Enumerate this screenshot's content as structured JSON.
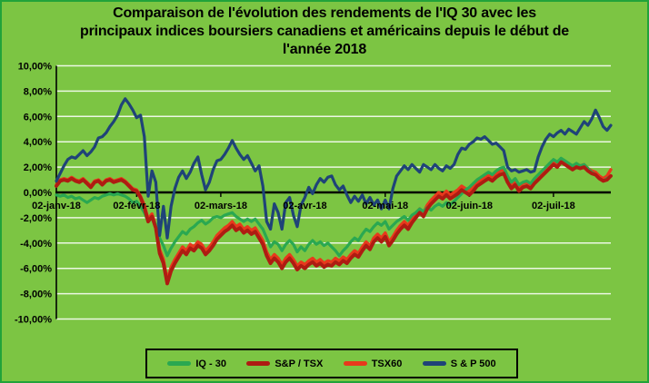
{
  "title_display": "Comparaison de l'évolution des rendements de l'IQ 30 avec les\nprincipaux indices boursiers canadiens et américains depuis le début de\nl'année 2018",
  "colors": {
    "figure_background": "#7cc543",
    "figure_border": "#21a33a",
    "gridline": "rgba(255,255,255,0.85)",
    "axis": "#000000",
    "text": "#000000"
  },
  "chart_data": {
    "type": "line",
    "title": "Comparaison de l'évolution des rendements de l'IQ 30 avec les principaux indices boursiers canadiens et américains depuis le début de l'année 2018",
    "x_axis": {
      "unit": "trading-day (daily series, Jan 2 2018 – late Jul 2018)",
      "n_points": 146,
      "tick_positions": [
        0,
        21,
        43,
        65,
        86,
        108,
        130
      ],
      "tick_labels": [
        "02-janv-18",
        "02-févr-18",
        "02-mars-18",
        "02-avr-18",
        "02-mai-18",
        "02-juin-18",
        "02-juil-18"
      ]
    },
    "y_axis": {
      "unit": "percent",
      "min": -10,
      "max": 10,
      "tick_step": 2,
      "tick_values": [
        10,
        8,
        6,
        4,
        2,
        0,
        -2,
        -4,
        -6,
        -8,
        -10
      ],
      "tick_labels": [
        "10,00%",
        "8,00%",
        "6,00%",
        "4,00%",
        "2,00%",
        "0,00%",
        "-2,00%",
        "-4,00%",
        "-6,00%",
        "-8,00%",
        "-10,00%"
      ]
    },
    "grid": true,
    "legend": {
      "position": "bottom"
    },
    "draw_order": [
      2,
      0,
      1,
      3
    ],
    "series": [
      {
        "name": "IQ - 30",
        "color": "#2aa851",
        "values": [
          -0.2,
          -0.3,
          -0.2,
          -0.4,
          -0.3,
          -0.5,
          -0.4,
          -0.6,
          -0.8,
          -0.6,
          -0.4,
          -0.5,
          -0.3,
          -0.2,
          -0.1,
          -0.2,
          -0.1,
          -0.2,
          -0.3,
          -0.5,
          -0.8,
          -0.7,
          -1.1,
          -1.6,
          -2.3,
          -2.0,
          -2.5,
          -3.6,
          -4.2,
          -5.0,
          -4.4,
          -3.9,
          -3.5,
          -3.1,
          -3.3,
          -2.9,
          -2.7,
          -2.4,
          -2.2,
          -2.5,
          -2.3,
          -2.0,
          -1.9,
          -2.0,
          -1.8,
          -1.7,
          -1.6,
          -1.9,
          -2.1,
          -2.3,
          -2.1,
          -2.3,
          -2.1,
          -2.5,
          -2.9,
          -3.6,
          -4.3,
          -3.9,
          -4.1,
          -4.6,
          -4.1,
          -3.8,
          -4.1,
          -4.7,
          -4.3,
          -4.6,
          -4.1,
          -3.8,
          -4.1,
          -3.9,
          -4.2,
          -4.0,
          -4.3,
          -4.6,
          -5.0,
          -4.6,
          -4.3,
          -3.9,
          -3.6,
          -3.8,
          -3.3,
          -2.9,
          -3.1,
          -2.7,
          -2.4,
          -2.6,
          -2.3,
          -2.9,
          -2.6,
          -2.3,
          -2.1,
          -1.9,
          -2.2,
          -1.8,
          -1.6,
          -1.3,
          -1.5,
          -1.2,
          -1.4,
          -1.1,
          -0.9,
          -1.1,
          -0.8,
          -1.0,
          -0.7,
          -0.4,
          -0.1,
          0.2,
          0.4,
          0.7,
          1.0,
          1.2,
          1.4,
          1.6,
          1.4,
          1.7,
          1.9,
          2.0,
          1.3,
          0.8,
          1.1,
          0.6,
          0.8,
          0.9,
          0.7,
          1.1,
          1.4,
          1.7,
          2.0,
          2.3,
          2.6,
          2.4,
          2.7,
          2.5,
          2.3,
          2.1,
          2.3,
          2.1,
          2.2,
          1.9,
          1.6,
          1.4,
          1.1,
          0.9,
          1.1,
          1.3
        ]
      },
      {
        "name": "S&P / TSX",
        "color": "#ae1c12",
        "values": [
          0.5,
          0.9,
          1.0,
          0.9,
          1.1,
          0.9,
          0.8,
          1.0,
          0.7,
          0.4,
          0.8,
          0.9,
          0.6,
          0.9,
          1.0,
          0.8,
          0.9,
          1.0,
          0.8,
          0.5,
          0.2,
          0.1,
          -0.4,
          -1.2,
          -2.3,
          -1.9,
          -2.8,
          -4.8,
          -5.6,
          -7.2,
          -6.2,
          -5.6,
          -5.1,
          -4.6,
          -4.9,
          -4.4,
          -4.6,
          -4.2,
          -4.4,
          -4.9,
          -4.6,
          -4.2,
          -3.7,
          -3.4,
          -3.1,
          -2.9,
          -2.6,
          -3.0,
          -2.8,
          -3.2,
          -3.0,
          -3.3,
          -3.1,
          -3.6,
          -4.1,
          -5.0,
          -5.6,
          -5.2,
          -5.5,
          -6.0,
          -5.5,
          -5.2,
          -5.6,
          -6.1,
          -5.8,
          -6.0,
          -5.7,
          -5.5,
          -5.8,
          -5.6,
          -5.9,
          -5.7,
          -5.8,
          -5.5,
          -5.7,
          -5.4,
          -5.6,
          -5.2,
          -4.9,
          -5.1,
          -4.6,
          -4.2,
          -4.5,
          -3.9,
          -3.6,
          -3.9,
          -3.5,
          -4.2,
          -3.8,
          -3.3,
          -2.9,
          -2.6,
          -2.9,
          -2.4,
          -2.0,
          -1.6,
          -1.9,
          -1.3,
          -0.9,
          -0.6,
          -0.3,
          -0.5,
          -0.2,
          -0.5,
          -0.3,
          -0.1,
          0.2,
          0.0,
          -0.2,
          0.1,
          0.5,
          0.7,
          0.9,
          1.1,
          0.9,
          1.2,
          1.4,
          1.5,
          0.8,
          0.3,
          0.6,
          0.1,
          0.4,
          0.5,
          0.3,
          0.7,
          1.0,
          1.3,
          1.6,
          1.9,
          2.2,
          2.0,
          2.4,
          2.2,
          2.0,
          1.8,
          2.0,
          1.9,
          2.0,
          1.7,
          1.5,
          1.4,
          1.1,
          0.9,
          1.0,
          1.3
        ]
      },
      {
        "name": "TSX60",
        "color": "#e8391c",
        "values": [
          0.6,
          1.0,
          1.1,
          1.0,
          1.2,
          1.0,
          0.9,
          1.1,
          0.8,
          0.5,
          0.9,
          1.0,
          0.7,
          1.0,
          1.1,
          0.9,
          1.0,
          1.1,
          0.9,
          0.6,
          0.3,
          0.2,
          -0.3,
          -1.0,
          -2.1,
          -1.7,
          -2.6,
          -4.5,
          -5.3,
          -6.9,
          -5.9,
          -5.3,
          -4.8,
          -4.3,
          -4.6,
          -4.1,
          -4.3,
          -3.9,
          -4.1,
          -4.6,
          -4.3,
          -3.9,
          -3.4,
          -3.1,
          -2.8,
          -2.6,
          -2.3,
          -2.7,
          -2.5,
          -2.9,
          -2.7,
          -3.0,
          -2.8,
          -3.3,
          -3.8,
          -4.7,
          -5.3,
          -4.9,
          -5.2,
          -5.7,
          -5.2,
          -4.9,
          -5.3,
          -5.8,
          -5.5,
          -5.7,
          -5.4,
          -5.2,
          -5.5,
          -5.3,
          -5.6,
          -5.4,
          -5.5,
          -5.2,
          -5.4,
          -5.1,
          -5.3,
          -4.9,
          -4.6,
          -4.8,
          -4.3,
          -3.9,
          -4.2,
          -3.6,
          -3.3,
          -3.6,
          -3.2,
          -3.9,
          -3.5,
          -3.0,
          -2.6,
          -2.3,
          -2.6,
          -2.1,
          -1.7,
          -1.3,
          -1.6,
          -1.0,
          -0.6,
          -0.3,
          0.0,
          -0.2,
          0.1,
          -0.2,
          0.0,
          0.2,
          0.5,
          0.3,
          0.1,
          0.4,
          0.8,
          1.0,
          1.2,
          1.4,
          1.2,
          1.5,
          1.7,
          1.8,
          1.1,
          0.6,
          0.9,
          0.4,
          0.7,
          0.8,
          0.6,
          1.0,
          1.3,
          1.6,
          1.9,
          2.2,
          2.5,
          2.3,
          2.6,
          2.4,
          2.2,
          2.0,
          2.2,
          2.1,
          2.2,
          1.9,
          1.7,
          1.6,
          1.3,
          1.1,
          1.3,
          1.8
        ]
      },
      {
        "name": "S & P 500",
        "color": "#1f4378",
        "values": [
          0.9,
          1.5,
          2.1,
          2.6,
          2.8,
          2.7,
          3.0,
          3.3,
          2.9,
          3.2,
          3.6,
          4.3,
          4.4,
          4.7,
          5.2,
          5.6,
          6.1,
          6.9,
          7.4,
          7.0,
          6.5,
          5.9,
          6.1,
          4.4,
          -0.3,
          1.7,
          0.8,
          -3.4,
          -1.1,
          -3.6,
          -1.1,
          0.3,
          1.2,
          1.7,
          1.1,
          1.6,
          2.3,
          2.8,
          1.4,
          0.2,
          0.8,
          1.8,
          2.5,
          2.6,
          3.0,
          3.5,
          4.1,
          3.5,
          3.0,
          2.6,
          2.9,
          2.3,
          1.7,
          2.1,
          0.5,
          -2.3,
          -2.9,
          -0.9,
          -1.6,
          -2.9,
          -0.8,
          -0.4,
          -1.8,
          -2.7,
          -1.0,
          -0.4,
          0.4,
          -0.1,
          0.6,
          1.1,
          0.8,
          1.2,
          1.3,
          0.6,
          0.2,
          0.5,
          -0.2,
          -0.8,
          -0.3,
          -0.7,
          -0.2,
          -0.9,
          -0.4,
          -1.0,
          -0.6,
          -1.3,
          -0.6,
          -1.3,
          0.3,
          1.3,
          1.7,
          2.1,
          1.8,
          2.2,
          1.9,
          1.6,
          2.2,
          2.0,
          1.8,
          2.2,
          1.9,
          1.7,
          2.1,
          1.9,
          2.2,
          3.0,
          3.5,
          3.4,
          3.8,
          4.0,
          4.3,
          4.2,
          4.4,
          4.1,
          3.8,
          3.9,
          3.6,
          3.3,
          2.0,
          1.7,
          1.8,
          1.6,
          1.7,
          1.8,
          1.6,
          1.7,
          2.8,
          3.6,
          4.2,
          4.6,
          4.4,
          4.7,
          4.9,
          4.6,
          5.0,
          4.8,
          4.6,
          5.1,
          5.6,
          5.3,
          5.8,
          6.5,
          5.9,
          5.2,
          4.9,
          5.3
        ]
      }
    ]
  }
}
